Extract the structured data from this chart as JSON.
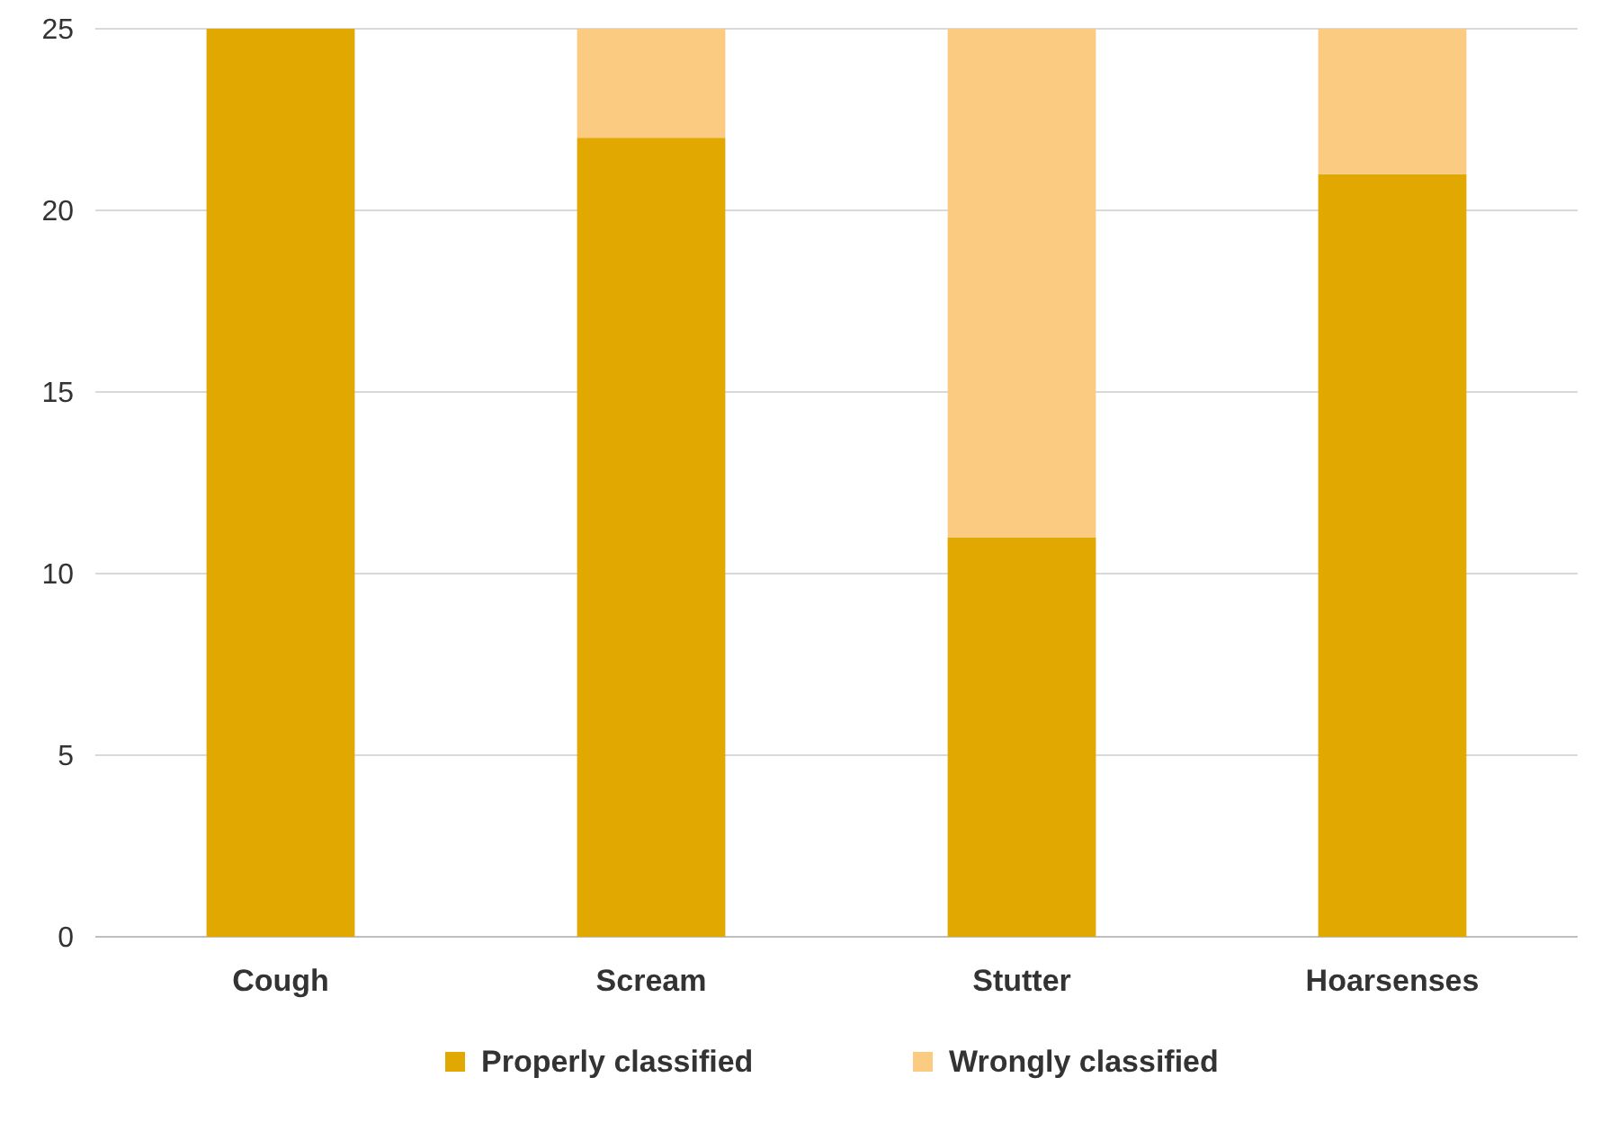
{
  "chart_data": {
    "type": "bar",
    "stacked": true,
    "categories": [
      "Cough",
      "Scream",
      "Stutter",
      "Hoarsenses"
    ],
    "series": [
      {
        "name": "Properly classified",
        "color": "#e0a800",
        "values": [
          25,
          22,
          11,
          21
        ]
      },
      {
        "name": "Wrongly classified",
        "color": "#fccb82",
        "values": [
          0,
          3,
          14,
          4
        ]
      }
    ],
    "ylim": [
      0,
      25
    ],
    "yticks": [
      0,
      5,
      10,
      15,
      20,
      25
    ],
    "grid": "y",
    "legend": "bottom"
  }
}
